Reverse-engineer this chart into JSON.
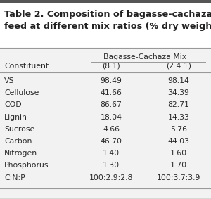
{
  "title_line1": "Table 2. Composition of bagasse-cachaza",
  "title_line2": "feed at different mix ratios (% dry weight)",
  "mix_label": "Bagasse-Cachaza Mix",
  "mix_col1": "(8:1)",
  "mix_col2": "(2.4:1)",
  "header_label": "Constituent",
  "rows": [
    [
      "VS",
      "98.49",
      "98.14"
    ],
    [
      "Cellulose",
      "41.66",
      "34.39"
    ],
    [
      "COD",
      "86.67",
      "82.71"
    ],
    [
      "Lignin",
      "18.04",
      "14.33"
    ],
    [
      "Sucrose",
      "4.66",
      "5.76"
    ],
    [
      "Carbon",
      "46.70",
      "44.03"
    ],
    [
      "Nitrogen",
      "1.40",
      "1.60"
    ],
    [
      "Phosphorus",
      "1.30",
      "1.70"
    ],
    [
      "C:N:P",
      "100:2.9:2.8",
      "100:3.7:3.9"
    ]
  ],
  "bg_color": "#d8d8d8",
  "title_bg": "#ffffff",
  "title_color": "#222222",
  "body_bg": "#f2f2f2",
  "text_color": "#2a2a2a",
  "line_color": "#999999",
  "font_size_title": 9.2,
  "font_size_body": 7.8
}
